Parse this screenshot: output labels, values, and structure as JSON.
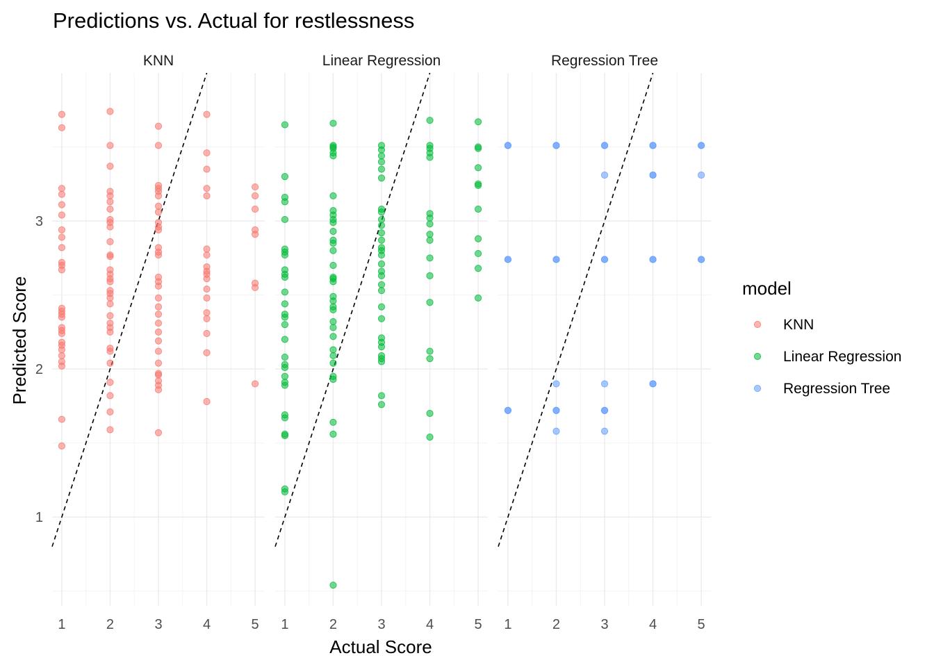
{
  "chart_data": {
    "type": "scatter",
    "title": "Predictions vs. Actual for restlessness",
    "xlabel": "Actual Score",
    "ylabel": "Predicted Score",
    "xlim": [
      0.8,
      5.2
    ],
    "ylim": [
      0.4,
      4.0
    ],
    "x_ticks": [
      1,
      2,
      3,
      4,
      5
    ],
    "y_ticks": [
      1,
      2,
      3
    ],
    "grid": true,
    "reference_line": "y = x (dashed)",
    "legend": {
      "title": "model",
      "placement": "right",
      "entries": [
        "KNN",
        "Linear Regression",
        "Regression Tree"
      ]
    },
    "facets": [
      "KNN",
      "Linear Regression",
      "Regression Tree"
    ],
    "series": [
      {
        "name": "KNN",
        "color": "#F8766D",
        "points": [
          [
            1,
            3.72
          ],
          [
            1,
            3.63
          ],
          [
            1,
            3.22
          ],
          [
            1,
            3.18
          ],
          [
            1,
            3.11
          ],
          [
            1,
            3.04
          ],
          [
            1,
            2.94
          ],
          [
            1,
            2.89
          ],
          [
            1,
            2.82
          ],
          [
            1,
            2.72
          ],
          [
            1,
            2.7
          ],
          [
            1,
            2.67
          ],
          [
            1,
            2.41
          ],
          [
            1,
            2.39
          ],
          [
            1,
            2.37
          ],
          [
            1,
            2.35
          ],
          [
            1,
            2.28
          ],
          [
            1,
            2.26
          ],
          [
            1,
            2.24
          ],
          [
            1,
            2.18
          ],
          [
            1,
            2.16
          ],
          [
            1,
            2.13
          ],
          [
            1,
            2.09
          ],
          [
            1,
            2.05
          ],
          [
            1,
            2.02
          ],
          [
            1,
            1.66
          ],
          [
            1,
            1.48
          ],
          [
            2,
            3.74
          ],
          [
            2,
            3.51
          ],
          [
            2,
            3.37
          ],
          [
            2,
            3.2
          ],
          [
            2,
            3.17
          ],
          [
            2,
            3.13
          ],
          [
            2,
            3.08
          ],
          [
            2,
            3.01
          ],
          [
            2,
            2.99
          ],
          [
            2,
            2.96
          ],
          [
            2,
            2.86
          ],
          [
            2,
            2.77
          ],
          [
            2,
            2.76
          ],
          [
            2,
            2.67
          ],
          [
            2,
            2.64
          ],
          [
            2,
            2.61
          ],
          [
            2,
            2.59
          ],
          [
            2,
            2.53
          ],
          [
            2,
            2.51
          ],
          [
            2,
            2.48
          ],
          [
            2,
            2.44
          ],
          [
            2,
            2.36
          ],
          [
            2,
            2.31
          ],
          [
            2,
            2.28
          ],
          [
            2,
            2.25
          ],
          [
            2,
            2.14
          ],
          [
            2,
            2.12
          ],
          [
            2,
            2.04
          ],
          [
            2,
            1.91
          ],
          [
            2,
            1.82
          ],
          [
            2,
            1.71
          ],
          [
            2,
            1.59
          ],
          [
            3,
            3.64
          ],
          [
            3,
            3.51
          ],
          [
            3,
            3.24
          ],
          [
            3,
            3.22
          ],
          [
            3,
            3.2
          ],
          [
            3,
            3.17
          ],
          [
            3,
            3.1
          ],
          [
            3,
            3.06
          ],
          [
            3,
            2.99
          ],
          [
            3,
            2.96
          ],
          [
            3,
            2.94
          ],
          [
            3,
            2.82
          ],
          [
            3,
            2.79
          ],
          [
            3,
            2.77
          ],
          [
            3,
            2.62
          ],
          [
            3,
            2.59
          ],
          [
            3,
            2.56
          ],
          [
            3,
            2.48
          ],
          [
            3,
            2.42
          ],
          [
            3,
            2.37
          ],
          [
            3,
            2.31
          ],
          [
            3,
            2.25
          ],
          [
            3,
            2.19
          ],
          [
            3,
            2.12
          ],
          [
            3,
            2.04
          ],
          [
            3,
            1.97
          ],
          [
            3,
            1.96
          ],
          [
            3,
            1.92
          ],
          [
            3,
            1.89
          ],
          [
            3,
            1.86
          ],
          [
            3,
            1.57
          ],
          [
            4,
            3.72
          ],
          [
            4,
            3.46
          ],
          [
            4,
            3.35
          ],
          [
            4,
            3.22
          ],
          [
            4,
            3.17
          ],
          [
            4,
            2.81
          ],
          [
            4,
            2.77
          ],
          [
            4,
            2.69
          ],
          [
            4,
            2.66
          ],
          [
            4,
            2.64
          ],
          [
            4,
            2.61
          ],
          [
            4,
            2.54
          ],
          [
            4,
            2.48
          ],
          [
            4,
            2.38
          ],
          [
            4,
            2.34
          ],
          [
            4,
            2.24
          ],
          [
            4,
            2.11
          ],
          [
            4,
            1.78
          ],
          [
            5,
            3.23
          ],
          [
            5,
            3.17
          ],
          [
            5,
            3.08
          ],
          [
            5,
            2.94
          ],
          [
            5,
            2.91
          ],
          [
            5,
            2.58
          ],
          [
            5,
            2.55
          ],
          [
            5,
            1.9
          ]
        ]
      },
      {
        "name": "Linear Regression",
        "color": "#00BA38",
        "points": [
          [
            1,
            3.65
          ],
          [
            1,
            3.3
          ],
          [
            1,
            3.16
          ],
          [
            1,
            3.13
          ],
          [
            1,
            3.01
          ],
          [
            1,
            2.81
          ],
          [
            1,
            2.79
          ],
          [
            1,
            2.77
          ],
          [
            1,
            2.67
          ],
          [
            1,
            2.64
          ],
          [
            1,
            2.62
          ],
          [
            1,
            2.52
          ],
          [
            1,
            2.44
          ],
          [
            1,
            2.37
          ],
          [
            1,
            2.35
          ],
          [
            1,
            2.3
          ],
          [
            1,
            2.2
          ],
          [
            1,
            2.08
          ],
          [
            1,
            2.03
          ],
          [
            1,
            2.01
          ],
          [
            1,
            1.95
          ],
          [
            1,
            1.91
          ],
          [
            1,
            1.89
          ],
          [
            1,
            1.69
          ],
          [
            1,
            1.67
          ],
          [
            1,
            1.56
          ],
          [
            1,
            1.55
          ],
          [
            1,
            1.19
          ],
          [
            1,
            1.17
          ],
          [
            2,
            3.66
          ],
          [
            2,
            3.51
          ],
          [
            2,
            3.5
          ],
          [
            2,
            3.49
          ],
          [
            2,
            3.46
          ],
          [
            2,
            3.44
          ],
          [
            2,
            3.17
          ],
          [
            2,
            3.07
          ],
          [
            2,
            3.04
          ],
          [
            2,
            3.01
          ],
          [
            2,
            2.99
          ],
          [
            2,
            2.93
          ],
          [
            2,
            2.87
          ],
          [
            2,
            2.85
          ],
          [
            2,
            2.8
          ],
          [
            2,
            2.7
          ],
          [
            2,
            2.62
          ],
          [
            2,
            2.61
          ],
          [
            2,
            2.59
          ],
          [
            2,
            2.49
          ],
          [
            2,
            2.46
          ],
          [
            2,
            2.42
          ],
          [
            2,
            2.4
          ],
          [
            2,
            2.32
          ],
          [
            2,
            2.28
          ],
          [
            2,
            2.22
          ],
          [
            2,
            2.13
          ],
          [
            2,
            2.09
          ],
          [
            2,
            2.04
          ],
          [
            2,
            1.95
          ],
          [
            2,
            1.93
          ],
          [
            2,
            1.64
          ],
          [
            2,
            1.56
          ],
          [
            2,
            0.54
          ],
          [
            3,
            3.51
          ],
          [
            3,
            3.48
          ],
          [
            3,
            3.44
          ],
          [
            3,
            3.4
          ],
          [
            3,
            3.35
          ],
          [
            3,
            3.29
          ],
          [
            3,
            3.08
          ],
          [
            3,
            3.06
          ],
          [
            3,
            3.01
          ],
          [
            3,
            2.97
          ],
          [
            3,
            2.92
          ],
          [
            3,
            2.87
          ],
          [
            3,
            2.82
          ],
          [
            3,
            2.8
          ],
          [
            3,
            2.77
          ],
          [
            3,
            2.71
          ],
          [
            3,
            2.66
          ],
          [
            3,
            2.63
          ],
          [
            3,
            2.57
          ],
          [
            3,
            2.53
          ],
          [
            3,
            2.42
          ],
          [
            3,
            2.34
          ],
          [
            3,
            2.21
          ],
          [
            3,
            2.18
          ],
          [
            3,
            2.15
          ],
          [
            3,
            2.09
          ],
          [
            3,
            2.07
          ],
          [
            3,
            2.05
          ],
          [
            3,
            1.82
          ],
          [
            3,
            1.76
          ],
          [
            4,
            3.68
          ],
          [
            4,
            3.51
          ],
          [
            4,
            3.49
          ],
          [
            4,
            3.46
          ],
          [
            4,
            3.43
          ],
          [
            4,
            3.05
          ],
          [
            4,
            3.02
          ],
          [
            4,
            2.98
          ],
          [
            4,
            2.91
          ],
          [
            4,
            2.87
          ],
          [
            4,
            2.75
          ],
          [
            4,
            2.63
          ],
          [
            4,
            2.45
          ],
          [
            4,
            2.12
          ],
          [
            4,
            2.07
          ],
          [
            4,
            1.7
          ],
          [
            4,
            1.54
          ],
          [
            5,
            3.67
          ],
          [
            5,
            3.5
          ],
          [
            5,
            3.49
          ],
          [
            5,
            3.36
          ],
          [
            5,
            3.25
          ],
          [
            5,
            3.24
          ],
          [
            5,
            3.08
          ],
          [
            5,
            2.88
          ],
          [
            5,
            2.78
          ],
          [
            5,
            2.68
          ],
          [
            5,
            2.48
          ]
        ]
      },
      {
        "name": "Regression Tree",
        "color": "#619CFF",
        "points": [
          [
            1,
            3.51
          ],
          [
            1,
            3.51
          ],
          [
            1,
            2.74
          ],
          [
            1,
            2.74
          ],
          [
            1,
            1.72
          ],
          [
            1,
            1.72
          ],
          [
            2,
            3.51
          ],
          [
            2,
            3.51
          ],
          [
            2,
            2.74
          ],
          [
            2,
            2.74
          ],
          [
            2,
            1.9
          ],
          [
            2,
            1.72
          ],
          [
            2,
            1.72
          ],
          [
            2,
            1.58
          ],
          [
            3,
            3.51
          ],
          [
            3,
            3.51
          ],
          [
            3,
            3.31
          ],
          [
            3,
            2.74
          ],
          [
            3,
            2.74
          ],
          [
            3,
            1.9
          ],
          [
            3,
            1.72
          ],
          [
            3,
            1.72
          ],
          [
            3,
            1.58
          ],
          [
            4,
            3.51
          ],
          [
            4,
            3.51
          ],
          [
            4,
            3.31
          ],
          [
            4,
            3.31
          ],
          [
            4,
            2.74
          ],
          [
            4,
            2.74
          ],
          [
            4,
            1.9
          ],
          [
            4,
            1.9
          ],
          [
            5,
            3.51
          ],
          [
            5,
            3.51
          ],
          [
            5,
            3.31
          ],
          [
            5,
            2.74
          ],
          [
            5,
            2.74
          ]
        ]
      }
    ]
  }
}
